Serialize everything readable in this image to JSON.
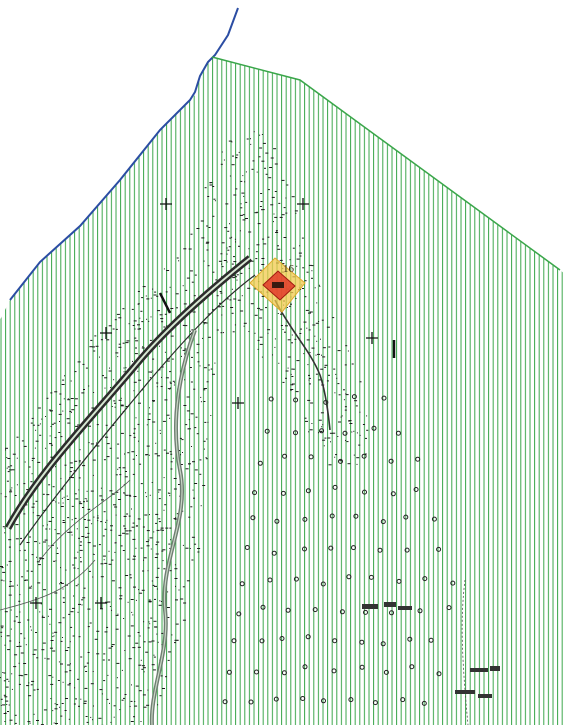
{
  "map": {
    "plot_label": "16",
    "colors": {
      "hatch": "#3aa64a",
      "coast": "#2b4da3",
      "vegetation": "#1a1a1a",
      "road": "#2c2c2c",
      "river": "#6f7f72",
      "highlight_outer": "#f2c94c",
      "highlight_inner": "#e23b2a"
    },
    "icons": [
      "vegetation-dot-icon",
      "circle-marker-icon",
      "cross-marker-icon"
    ]
  }
}
